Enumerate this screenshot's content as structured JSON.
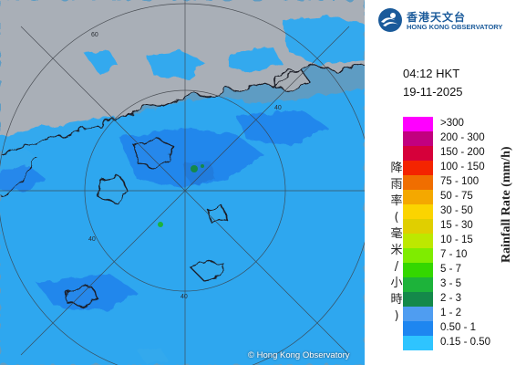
{
  "header": {
    "org_zh": "香港天文台",
    "org_en": "HONG KONG OBSERVATORY",
    "logo_icon": "hko-logo-icon"
  },
  "timestamp": {
    "time": "04:12 HKT",
    "date": "19-11-2025"
  },
  "legend": {
    "title_en": "Rainfall Rate (mm/h)",
    "title_zh": "降雨率(毫米/小時)",
    "items": [
      {
        "label": ">300",
        "color": "#ff00ff"
      },
      {
        "label": "200 - 300",
        "color": "#c2007f"
      },
      {
        "label": "150 - 200",
        "color": "#d6003a"
      },
      {
        "label": "100 - 150",
        "color": "#f42400"
      },
      {
        "label": "75 - 100",
        "color": "#f06e00"
      },
      {
        "label": "50 - 75",
        "color": "#f4a800"
      },
      {
        "label": "30 - 50",
        "color": "#fbd400"
      },
      {
        "label": "15 - 30",
        "color": "#e0cf00"
      },
      {
        "label": "10 - 15",
        "color": "#bde800"
      },
      {
        "label": "7 - 10",
        "color": "#7fec00"
      },
      {
        "label": "5 - 7",
        "color": "#34d700"
      },
      {
        "label": "3 - 5",
        "color": "#1db33a"
      },
      {
        "label": "2 - 3",
        "color": "#14894a"
      },
      {
        "label": "1 - 2",
        "color": "#4f9df1"
      },
      {
        "label": "0.50 - 1",
        "color": "#1e86f0"
      },
      {
        "label": "0.15 - 0.50",
        "color": "#2ec4ff"
      }
    ]
  },
  "map": {
    "range_labels": [
      "40",
      "60"
    ],
    "copyright": "© Hong Kong Observatory",
    "colors": {
      "sea": "#5e9cc3",
      "land": "#a6aeb8",
      "rain_light": "#33aaf2",
      "rain_moderate": "#1f86f0",
      "rain_heavy": "#14894a"
    }
  }
}
